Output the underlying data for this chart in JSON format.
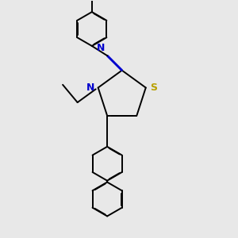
{
  "background_color": "#e8e8e8",
  "bond_color": "#000000",
  "N_color": "#0000cd",
  "S_color": "#b8a000",
  "lw": 1.4,
  "dbo": 0.013,
  "xlim": [
    -1.8,
    2.2
  ],
  "ylim": [
    -4.5,
    3.5
  ],
  "figw": 3.0,
  "figh": 3.0,
  "dpi": 100
}
